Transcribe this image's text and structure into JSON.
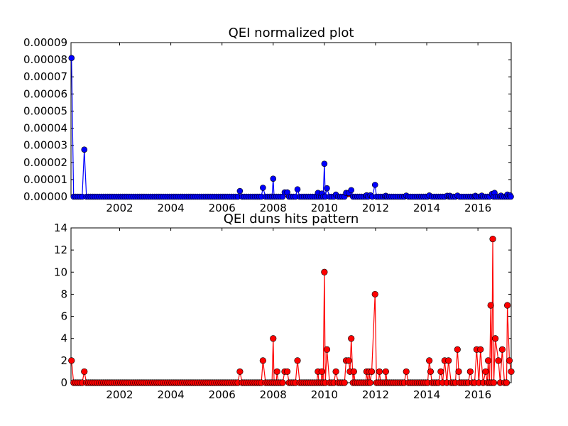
{
  "chart_data": [
    {
      "type": "line",
      "title": "QEI normalized plot",
      "xlabel": "",
      "ylabel": "",
      "xlim": [
        2000.1,
        2017.3
      ],
      "ylim": [
        0,
        9e-05
      ],
      "x_tick_labels": [
        "2002",
        "2004",
        "2006",
        "2008",
        "2010",
        "2012",
        "2014",
        "2016"
      ],
      "y_tick_labels": [
        "0.00000",
        "0.00001",
        "0.00002",
        "0.00003",
        "0.00004",
        "0.00005",
        "0.00006",
        "0.00007",
        "0.00008",
        "0.00009"
      ],
      "grid": false,
      "colors": {
        "line": "#0000ff",
        "marker": "#0000ff",
        "baseline": "#ff0000"
      },
      "series": [
        {
          "values": [
            [
              2000.12,
              8.1e-05
            ],
            [
              2000.62,
              2.75e-05
            ],
            [
              2006.7,
              3.3e-06
            ],
            [
              2007.6,
              5.2e-06
            ],
            [
              2008.0,
              1.05e-05
            ],
            [
              2008.45,
              2.5e-06
            ],
            [
              2008.55,
              2.5e-06
            ],
            [
              2008.95,
              4.3e-06
            ],
            [
              2009.75,
              2.2e-06
            ],
            [
              2009.9,
              1.8e-06
            ],
            [
              2010.0,
              1.92e-05
            ],
            [
              2010.1,
              4.9e-06
            ],
            [
              2010.45,
              1.2e-06
            ],
            [
              2010.85,
              2.2e-06
            ],
            [
              2010.95,
              2.2e-06
            ],
            [
              2011.05,
              3.8e-06
            ],
            [
              2011.65,
              8e-07
            ],
            [
              2011.8,
              8e-07
            ],
            [
              2011.98,
              6.9e-06
            ],
            [
              2012.4,
              5e-07
            ],
            [
              2013.2,
              6e-07
            ],
            [
              2014.1,
              7e-07
            ],
            [
              2014.8,
              5e-07
            ],
            [
              2014.9,
              5e-07
            ],
            [
              2015.2,
              6e-07
            ],
            [
              2015.9,
              5e-07
            ],
            [
              2016.15,
              6e-07
            ],
            [
              2016.55,
              1.6e-06
            ],
            [
              2016.65,
              2.2e-06
            ],
            [
              2016.9,
              6e-07
            ],
            [
              2017.15,
              1.2e-06
            ],
            [
              2017.25,
              8e-07
            ]
          ]
        }
      ]
    },
    {
      "type": "line",
      "title": "QEI duns hits pattern",
      "xlabel": "",
      "ylabel": "",
      "xlim": [
        2000.1,
        2017.3
      ],
      "ylim": [
        0,
        14
      ],
      "x_tick_labels": [
        "2002",
        "2004",
        "2006",
        "2008",
        "2010",
        "2012",
        "2014",
        "2016"
      ],
      "y_tick_labels": [
        "0",
        "2",
        "4",
        "6",
        "8",
        "10",
        "12",
        "14"
      ],
      "grid": false,
      "colors": {
        "line": "#ff0000",
        "marker": "#ff0000"
      },
      "series": [
        {
          "values": [
            [
              2000.12,
              2
            ],
            [
              2000.62,
              1
            ],
            [
              2006.7,
              1
            ],
            [
              2007.6,
              2
            ],
            [
              2008.0,
              4
            ],
            [
              2008.15,
              1
            ],
            [
              2008.45,
              1
            ],
            [
              2008.55,
              1
            ],
            [
              2008.95,
              2
            ],
            [
              2009.75,
              1
            ],
            [
              2009.9,
              1
            ],
            [
              2010.0,
              10
            ],
            [
              2010.1,
              3
            ],
            [
              2010.45,
              1
            ],
            [
              2010.85,
              2
            ],
            [
              2010.95,
              2
            ],
            [
              2011.0,
              1
            ],
            [
              2011.05,
              4
            ],
            [
              2011.15,
              1
            ],
            [
              2011.65,
              1
            ],
            [
              2011.75,
              1
            ],
            [
              2011.85,
              1
            ],
            [
              2011.98,
              8
            ],
            [
              2012.15,
              1
            ],
            [
              2012.4,
              1
            ],
            [
              2013.2,
              1
            ],
            [
              2014.1,
              2
            ],
            [
              2014.15,
              1
            ],
            [
              2014.55,
              1
            ],
            [
              2014.7,
              2
            ],
            [
              2014.85,
              2
            ],
            [
              2015.2,
              3
            ],
            [
              2015.25,
              1
            ],
            [
              2015.7,
              1
            ],
            [
              2015.95,
              3
            ],
            [
              2016.1,
              3
            ],
            [
              2016.3,
              1
            ],
            [
              2016.4,
              2
            ],
            [
              2016.5,
              7
            ],
            [
              2016.58,
              13
            ],
            [
              2016.68,
              4
            ],
            [
              2016.8,
              2
            ],
            [
              2016.95,
              3
            ],
            [
              2017.15,
              7
            ],
            [
              2017.23,
              2
            ],
            [
              2017.3,
              1
            ]
          ]
        }
      ]
    }
  ]
}
